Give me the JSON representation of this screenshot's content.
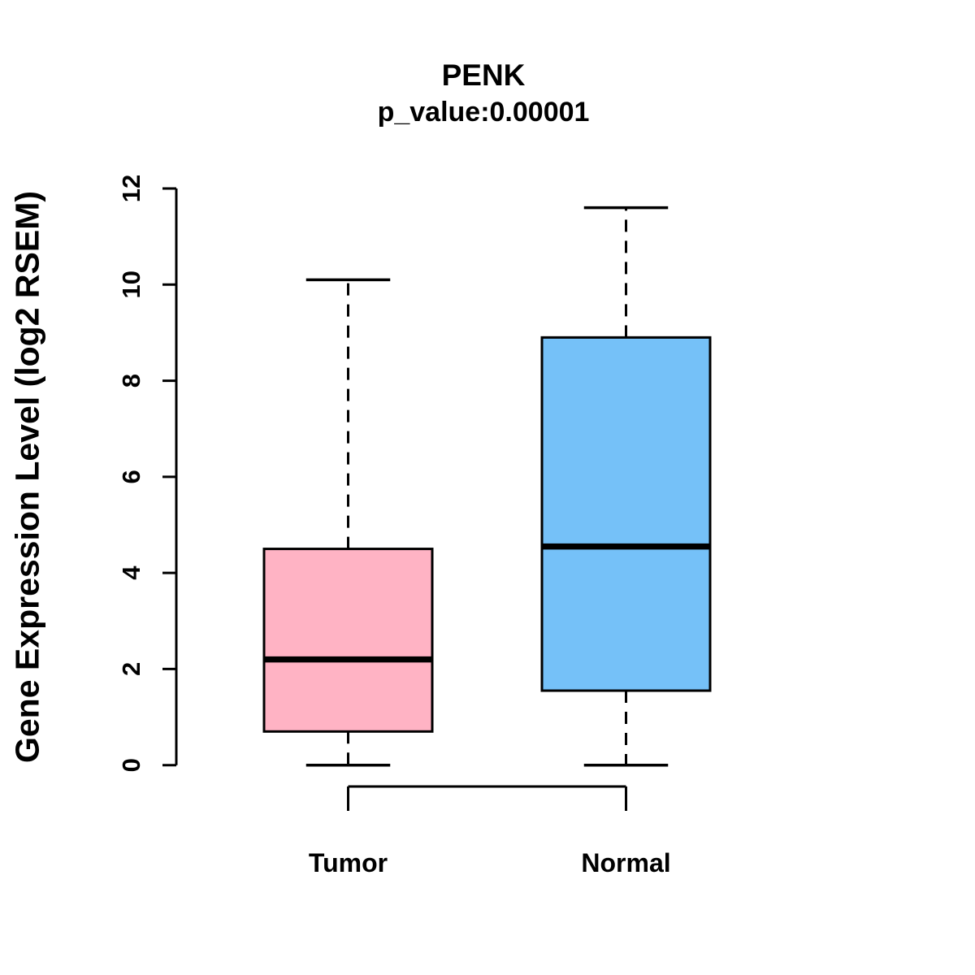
{
  "figure": {
    "background": "#ffffff"
  },
  "chart_data": {
    "type": "boxplot",
    "title": "PENK",
    "subtitle": "p_value:0.00001",
    "ylabel": "Gene Expression Level (log2 RSEM)",
    "xlabel": "",
    "ylim": [
      0,
      12
    ],
    "yticks": [
      0,
      2,
      4,
      6,
      8,
      10,
      12
    ],
    "categories": [
      "Tumor",
      "Normal"
    ],
    "series": [
      {
        "name": "Tumor",
        "box_color": "#FFB3C4",
        "min": 0,
        "q1": 0.7,
        "median": 2.2,
        "q3": 4.5,
        "max": 10.1,
        "outliers": []
      },
      {
        "name": "Normal",
        "box_color": "#75C1F8",
        "min": 0,
        "q1": 1.55,
        "median": 4.55,
        "q3": 8.9,
        "max": 11.6,
        "outliers": []
      }
    ],
    "annotations": [
      {
        "type": "comparison_bracket",
        "between": [
          "Tumor",
          "Normal"
        ]
      }
    ],
    "grid": false,
    "legend_position": "none",
    "axis_color": "#000000",
    "whisker_style": "dashed"
  }
}
